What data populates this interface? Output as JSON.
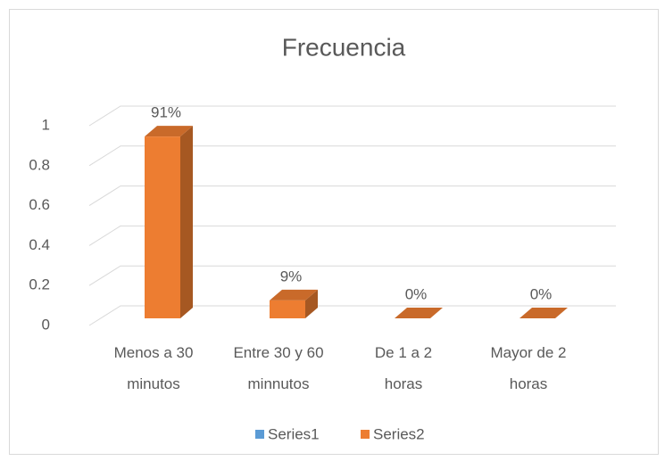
{
  "chart_data": {
    "type": "bar3d",
    "title": "Frecuencia",
    "categories": [
      "Menos a 30\nminutos",
      "Entre 30 y 60\nminnutos",
      "De 1 a 2\nhoras",
      "Mayor de 2\nhoras"
    ],
    "series": [
      {
        "name": "Series1",
        "color": "#5b9bd5",
        "values": [
          null,
          null,
          null,
          null
        ]
      },
      {
        "name": "Series2",
        "color": "#ed7d31",
        "values": [
          0.91,
          0.09,
          0,
          0
        ],
        "value_labels": [
          "91%",
          "9%",
          "0%",
          "0%"
        ]
      }
    ],
    "ylim": [
      0,
      1
    ],
    "yticks": [
      0,
      0.2,
      0.4,
      0.6,
      0.8,
      1
    ],
    "grid": true,
    "legend": "bottom"
  }
}
